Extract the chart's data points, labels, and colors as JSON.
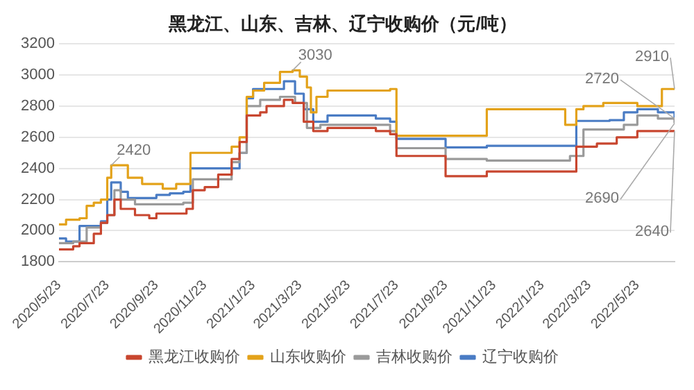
{
  "chart_data": {
    "type": "step",
    "title": "黑龙江、山东、吉林、辽宁收购价（元/吨）",
    "xlim": [
      "2020-05-23",
      "2022-07-09"
    ],
    "xticks": [
      {
        "value": "2020-05-23",
        "label": "2020/5/23"
      },
      {
        "value": "2020-07-23",
        "label": "2020/7/23"
      },
      {
        "value": "2020-09-23",
        "label": "2020/9/23"
      },
      {
        "value": "2020-11-23",
        "label": "2020/11/23"
      },
      {
        "value": "2021-01-23",
        "label": "2021/1/23"
      },
      {
        "value": "2021-03-23",
        "label": "2021/3/23"
      },
      {
        "value": "2021-05-23",
        "label": "2021/5/23"
      },
      {
        "value": "2021-07-23",
        "label": "2021/7/23"
      },
      {
        "value": "2021-09-23",
        "label": "2021/9/23"
      },
      {
        "value": "2021-11-23",
        "label": "2021/11/23"
      },
      {
        "value": "2022-01-23",
        "label": "2022/1/23"
      },
      {
        "value": "2022-03-23",
        "label": "2022/3/23"
      },
      {
        "value": "2022-05-23",
        "label": "2022/5/23"
      }
    ],
    "ylim": [
      1800,
      3200
    ],
    "yticks": [
      1800,
      2000,
      2200,
      2400,
      2600,
      2800,
      3000,
      3200
    ],
    "grid": "y",
    "legend": "bottom",
    "marker": "none",
    "series": [
      {
        "name": "黑龙江收购价",
        "color": "#c8462f",
        "x": [
          "2020-05-23",
          "2020-06-10",
          "2020-06-18",
          "2020-07-06",
          "2020-07-15",
          "2020-07-23",
          "2020-08-01",
          "2020-08-09",
          "2020-08-27",
          "2020-09-14",
          "2020-09-23",
          "2020-10-31",
          "2020-11-08",
          "2020-11-23",
          "2020-12-10",
          "2020-12-27",
          "2021-01-06",
          "2021-01-15",
          "2021-02-01",
          "2021-02-09",
          "2021-03-03",
          "2021-03-14",
          "2021-03-28",
          "2021-04-09",
          "2021-04-27",
          "2021-06-27",
          "2021-07-15",
          "2021-07-23",
          "2021-09-23",
          "2021-11-14",
          "2022-03-07",
          "2022-04-02",
          "2022-04-27",
          "2022-05-23",
          "2022-07-09"
        ],
        "values": [
          1880,
          1900,
          1920,
          1980,
          2050,
          2100,
          2200,
          2140,
          2100,
          2080,
          2110,
          2140,
          2260,
          2280,
          2360,
          2460,
          2570,
          2740,
          2760,
          2800,
          2840,
          2820,
          2700,
          2640,
          2660,
          2640,
          2620,
          2480,
          2350,
          2380,
          2540,
          2560,
          2600,
          2640,
          2640
        ]
      },
      {
        "name": "山东收购价",
        "color": "#e3a21a",
        "x": [
          "2020-05-23",
          "2020-06-01",
          "2020-06-18",
          "2020-06-27",
          "2020-07-06",
          "2020-07-15",
          "2020-07-23",
          "2020-07-28",
          "2020-08-18",
          "2020-09-05",
          "2020-10-01",
          "2020-10-18",
          "2020-11-05",
          "2020-12-27",
          "2021-01-06",
          "2021-01-15",
          "2021-01-23",
          "2021-02-06",
          "2021-02-26",
          "2021-03-14",
          "2021-03-23",
          "2021-04-01",
          "2021-04-06",
          "2021-04-13",
          "2021-04-27",
          "2021-07-15",
          "2021-07-23",
          "2021-11-14",
          "2022-02-21",
          "2022-03-07",
          "2022-03-16",
          "2022-04-10",
          "2022-05-23",
          "2022-06-23",
          "2022-07-09"
        ],
        "values": [
          2040,
          2070,
          2080,
          2160,
          2180,
          2200,
          2340,
          2420,
          2340,
          2300,
          2270,
          2300,
          2500,
          2540,
          2600,
          2860,
          2900,
          2950,
          3020,
          3030,
          2990,
          2920,
          2760,
          2860,
          2900,
          2910,
          2610,
          2780,
          2680,
          2780,
          2800,
          2820,
          2800,
          2910,
          2910
        ]
      },
      {
        "name": "吉林收购价",
        "color": "#9a9a9a",
        "x": [
          "2020-05-23",
          "2020-06-10",
          "2020-06-27",
          "2020-07-15",
          "2020-07-23",
          "2020-08-01",
          "2020-08-09",
          "2020-08-27",
          "2020-10-27",
          "2020-11-08",
          "2020-12-27",
          "2021-01-06",
          "2021-01-15",
          "2021-02-01",
          "2021-02-26",
          "2021-03-17",
          "2021-04-01",
          "2021-04-18",
          "2021-06-27",
          "2021-07-15",
          "2021-07-23",
          "2021-09-23",
          "2021-11-14",
          "2022-02-27",
          "2022-03-16",
          "2022-05-06",
          "2022-05-23",
          "2022-06-18",
          "2022-07-09"
        ],
        "values": [
          1920,
          1930,
          2020,
          2050,
          2100,
          2260,
          2200,
          2170,
          2180,
          2330,
          2440,
          2500,
          2800,
          2840,
          2860,
          2820,
          2660,
          2680,
          2680,
          2640,
          2530,
          2460,
          2450,
          2480,
          2650,
          2680,
          2740,
          2720,
          2690
        ]
      },
      {
        "name": "辽宁收购价",
        "color": "#4a7cc4",
        "x": [
          "2020-05-23",
          "2020-06-01",
          "2020-06-18",
          "2020-07-15",
          "2020-07-23",
          "2020-07-28",
          "2020-08-09",
          "2020-08-18",
          "2020-09-23",
          "2020-10-10",
          "2020-10-27",
          "2020-11-05",
          "2020-12-27",
          "2021-01-06",
          "2021-01-15",
          "2021-01-23",
          "2021-03-03",
          "2021-03-17",
          "2021-03-28",
          "2021-04-09",
          "2021-04-27",
          "2021-06-27",
          "2021-07-15",
          "2021-07-23",
          "2021-09-23",
          "2021-11-14",
          "2022-03-07",
          "2022-04-18",
          "2022-05-06",
          "2022-05-23",
          "2022-06-18",
          "2022-07-09"
        ],
        "values": [
          1950,
          1930,
          2030,
          2060,
          2200,
          2310,
          2250,
          2210,
          2230,
          2240,
          2250,
          2400,
          2400,
          2500,
          2850,
          2910,
          2960,
          2880,
          2780,
          2700,
          2740,
          2720,
          2700,
          2590,
          2535,
          2545,
          2705,
          2710,
          2760,
          2780,
          2760,
          2720
        ]
      }
    ],
    "annotations": [
      {
        "text": "2420",
        "x": "2020-07-28",
        "y": 2420
      },
      {
        "text": "3030",
        "x": "2021-03-14",
        "y": 3030
      },
      {
        "text": "2910",
        "x": "2022-07-09",
        "y": 2910
      },
      {
        "text": "2720",
        "x": "2022-07-09",
        "y": 2720
      },
      {
        "text": "2690",
        "x": "2022-07-09",
        "y": 2690
      },
      {
        "text": "2640",
        "x": "2022-07-09",
        "y": 2640
      }
    ]
  }
}
